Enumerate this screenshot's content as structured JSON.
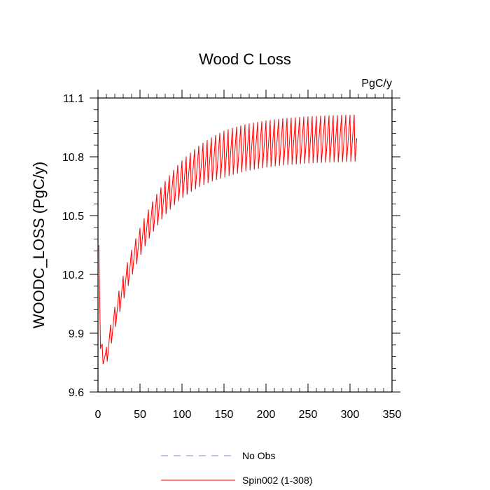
{
  "chart_data": {
    "type": "line",
    "title": "Wood C Loss",
    "units_label": "PgC/y",
    "xlabel": "",
    "ylabel": "WOODC_LOSS  (PgC/y)",
    "xlim": [
      0,
      350
    ],
    "ylim": [
      9.6,
      11.1
    ],
    "x_ticks": [
      0,
      50,
      100,
      150,
      200,
      250,
      300,
      350
    ],
    "y_ticks": [
      9.6,
      9.9,
      10.2,
      10.5,
      10.8,
      11.1
    ],
    "x_tick_labels": [
      "0",
      "50",
      "100",
      "150",
      "200",
      "250",
      "300",
      "350"
    ],
    "y_tick_labels": [
      "9.6",
      "9.9",
      "10.2",
      "10.5",
      "10.8",
      "11.1"
    ],
    "grid": false,
    "legend_position": "bottom-center",
    "series": [
      {
        "name": "No Obs",
        "color": "#7f7fe0",
        "dash": true,
        "values": []
      },
      {
        "name": "Spin002 (1-308)",
        "color": "#ff0000",
        "dash": false,
        "x_start": 1,
        "x_end": 308,
        "start_value": 10.4,
        "early_min": 9.68,
        "plateau_low": 10.83,
        "plateau_high": 11.05,
        "cycle_years": 5
      }
    ]
  }
}
